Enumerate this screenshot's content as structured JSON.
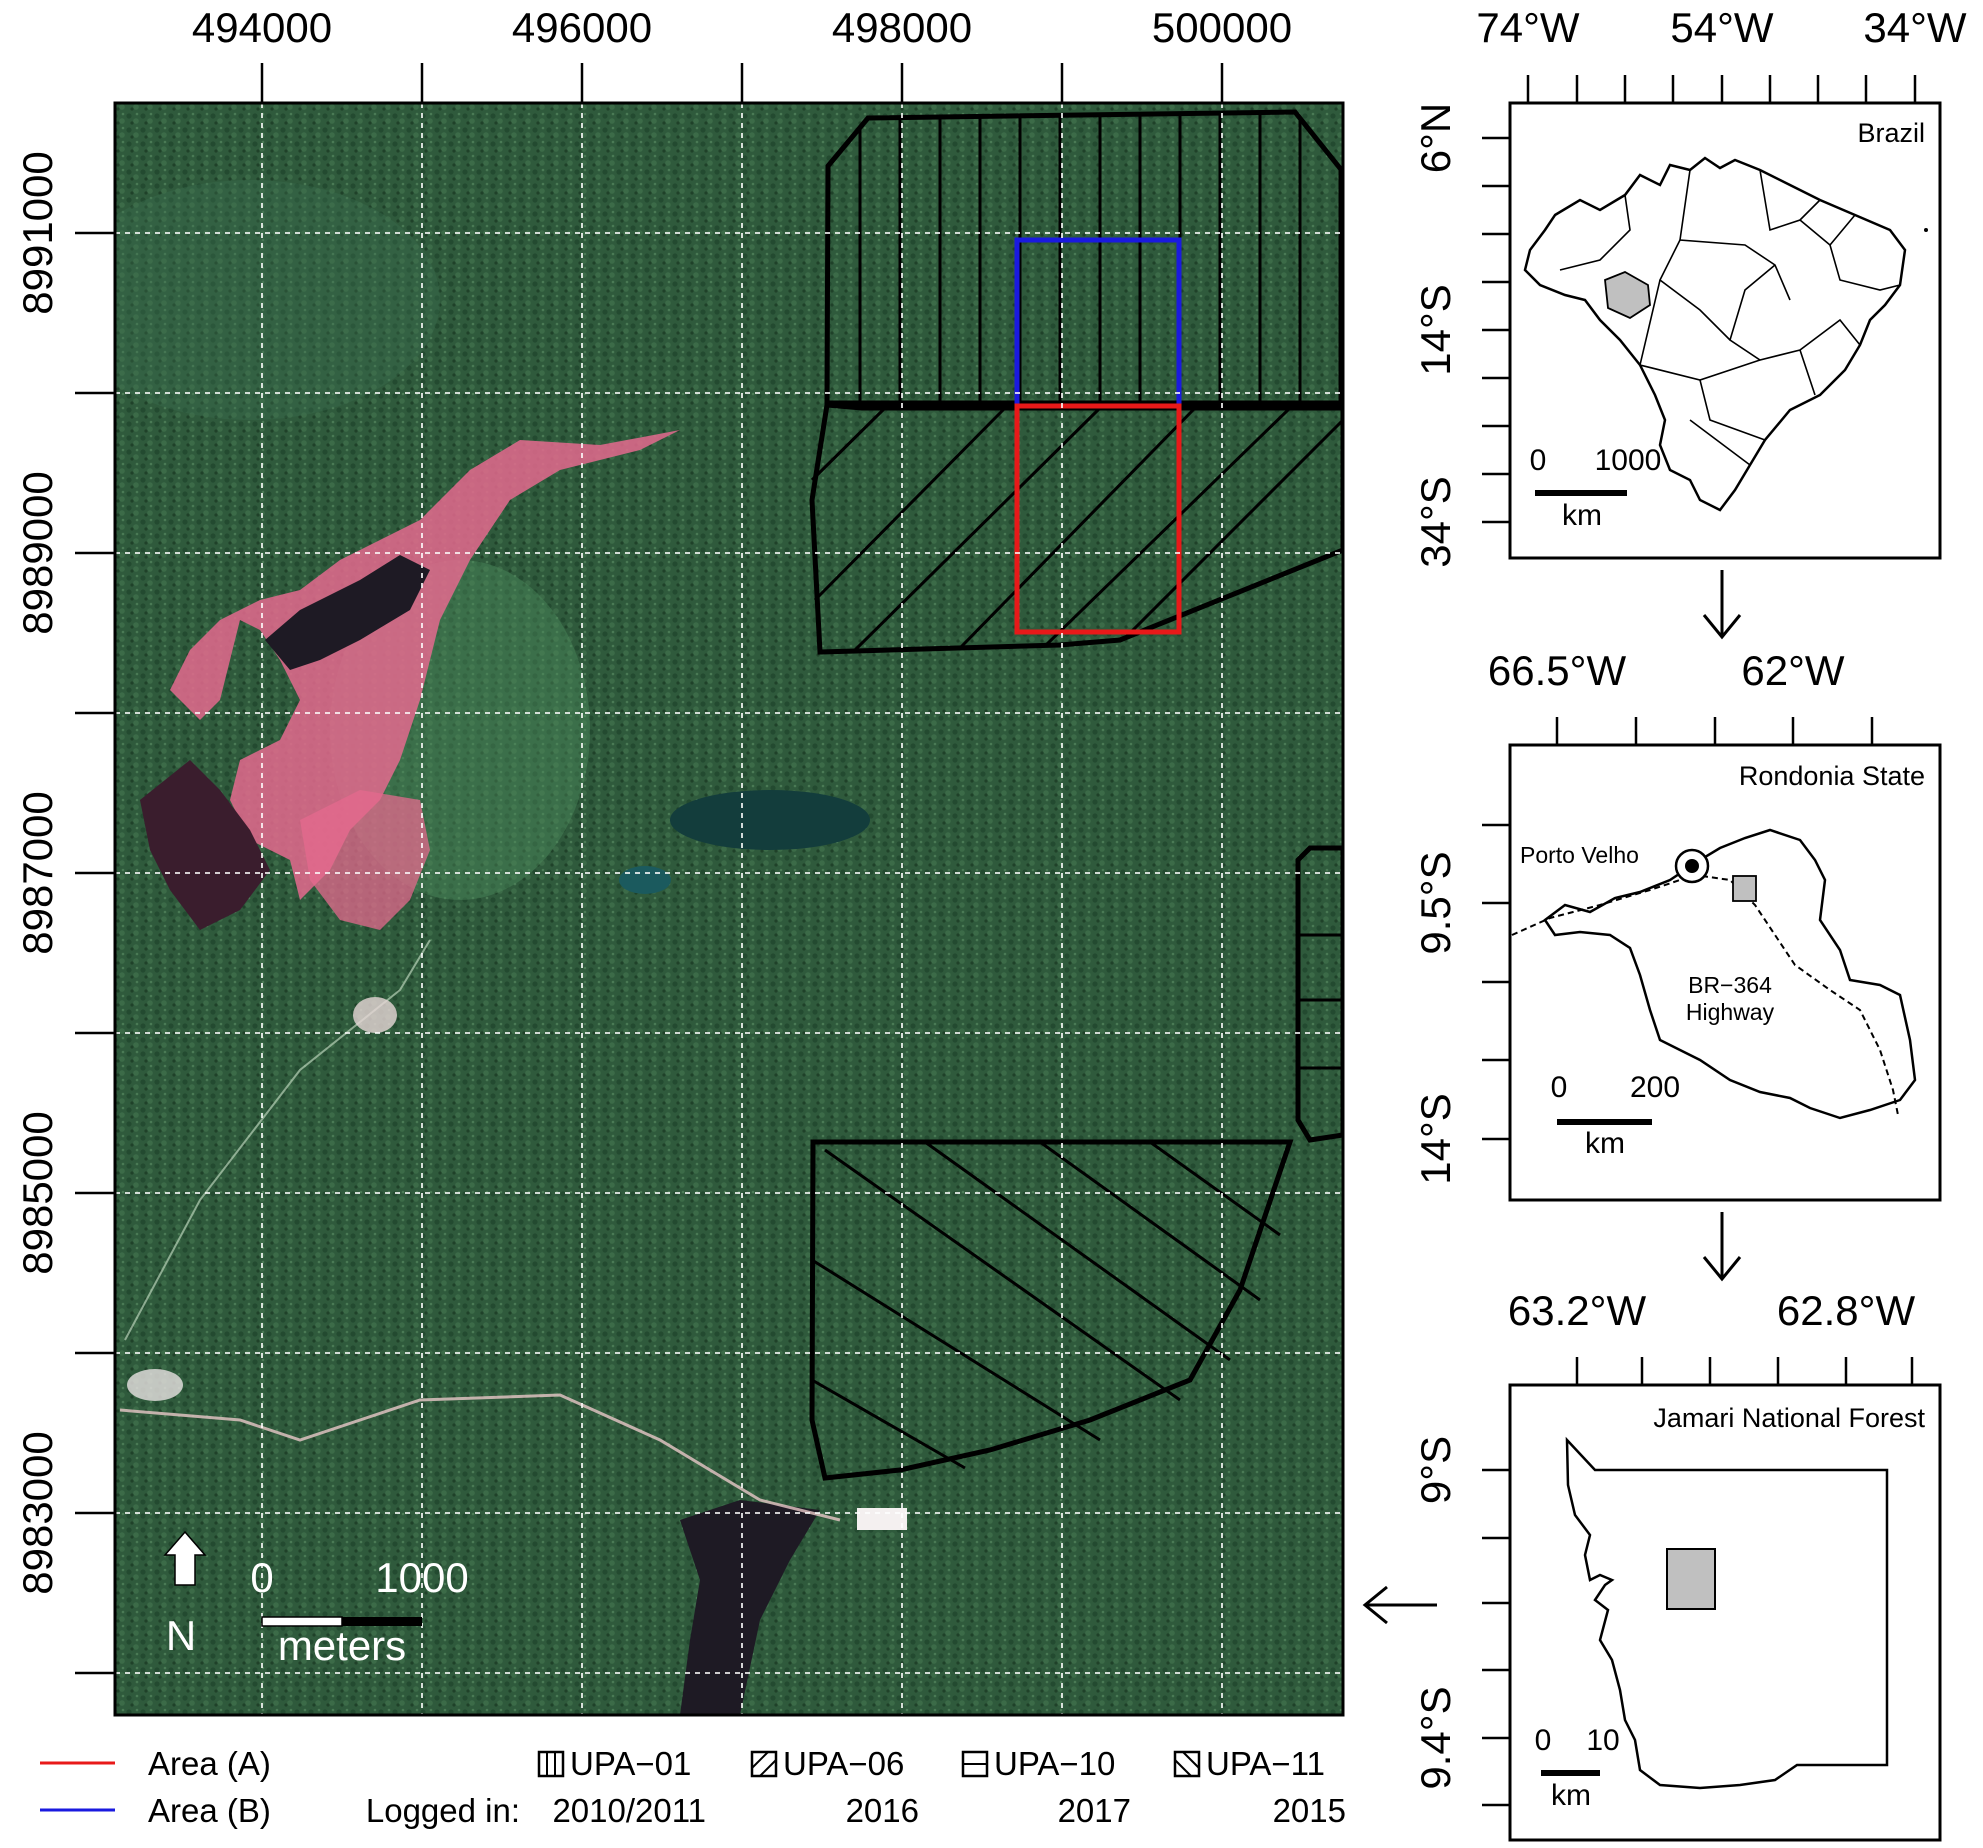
{
  "main_map": {
    "x_ticks": [
      "494000",
      "496000",
      "498000",
      "500000"
    ],
    "y_ticks": [
      "8991000",
      "8989000",
      "8987000",
      "8985000",
      "8983000"
    ],
    "north_label": "N",
    "scale_start": "0",
    "scale_end": "1000",
    "scale_unit": "meters",
    "colors": {
      "area_a": "#e81919",
      "area_b": "#1a1adf",
      "forest": "#2f5a3c",
      "cleared": "#e46a8e",
      "water": "#1e1a24"
    }
  },
  "legend": {
    "area_a": "Area (A)",
    "area_b": "Area (B)",
    "logged_in": "Logged in:",
    "units": [
      {
        "name": "UPA−01",
        "year": "2010/2011"
      },
      {
        "name": "UPA−06",
        "year": "2016"
      },
      {
        "name": "UPA−10",
        "year": "2017"
      },
      {
        "name": "UPA−11",
        "year": "2015"
      }
    ]
  },
  "inset_brazil": {
    "title": "Brazil",
    "x_ticks": [
      "74°W",
      "54°W",
      "34°W"
    ],
    "y_ticks": [
      "6°N",
      "14°S",
      "34°S"
    ],
    "scale_start": "0",
    "scale_end": "1000",
    "scale_unit": "km"
  },
  "inset_rondonia": {
    "title": "Rondonia State",
    "x_ticks": [
      "66.5°W",
      "62°W"
    ],
    "y_ticks": [
      "9.5°S",
      "14°S"
    ],
    "city": "Porto Velho",
    "road_line1": "BR−364",
    "road_line2": "Highway",
    "scale_start": "0",
    "scale_end": "200",
    "scale_unit": "km"
  },
  "inset_jamari": {
    "title": "Jamari National Forest",
    "x_ticks": [
      "63.2°W",
      "62.8°W"
    ],
    "y_ticks": [
      "9°S",
      "9.4°S"
    ],
    "scale_start": "0",
    "scale_end": "10",
    "scale_unit": "km"
  }
}
